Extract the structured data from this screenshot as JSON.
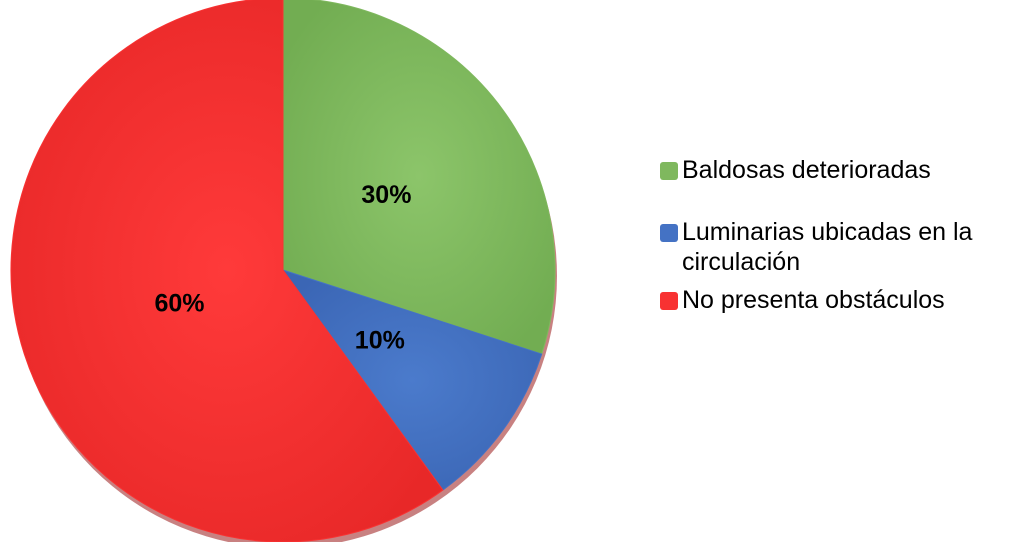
{
  "chart_data": {
    "type": "pie",
    "slices": [
      {
        "label": "Baldosas deterioradas",
        "value": 30,
        "value_label": "30%",
        "color": "#7FB85E"
      },
      {
        "label": "Luminarias ubicadas en la circulación",
        "value": 10,
        "value_label": "10%",
        "color": "#4472C4"
      },
      {
        "label": "No presenta obstáculos",
        "value": 60,
        "value_label": "60%",
        "color": "#F83232"
      }
    ],
    "legend_position": "right"
  }
}
